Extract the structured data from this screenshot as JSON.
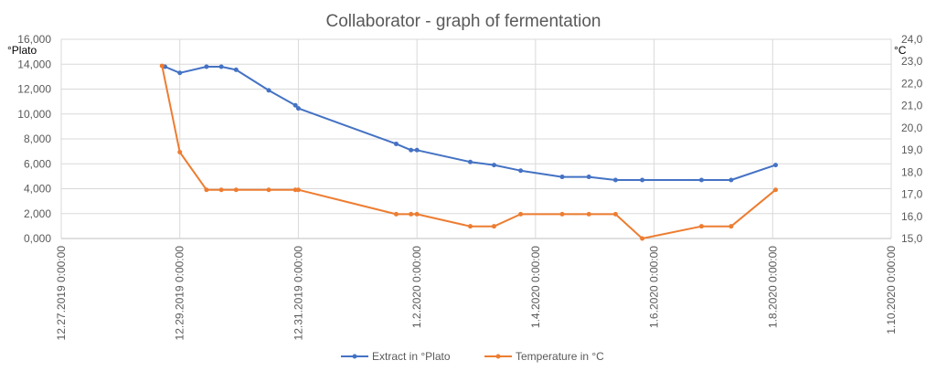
{
  "chart_data": {
    "type": "line",
    "title": "Collaborator - graph of fermentation",
    "xlabel": "",
    "y_left_label": "°Plato",
    "y_right_label": "°C",
    "x_ticks": [
      "12.27.2019 0:00:00",
      "12.29.2019 0:00:00",
      "12.31.2019 0:00:00",
      "1.2.2020 0:00:00",
      "1.4.2020 0:00:00",
      "1.6.2020 0:00:00",
      "1.8.2020 0:00:00",
      "1.10.2020 0:00:00"
    ],
    "x_range_days": [
      0,
      14
    ],
    "y_left_ticks": [
      "0,000",
      "2,000",
      "4,000",
      "6,000",
      "8,000",
      "10,000",
      "12,000",
      "14,000",
      "16,000"
    ],
    "y_left_range": [
      0,
      16
    ],
    "y_right_ticks": [
      "15,0",
      "16,0",
      "17,0",
      "18,0",
      "19,0",
      "20,0",
      "21,0",
      "22,0",
      "23,0",
      "24,0"
    ],
    "y_right_range": [
      15,
      24
    ],
    "grid": true,
    "legend_position": "bottom",
    "series": [
      {
        "name": "Extract in °Plato",
        "axis": "left",
        "color": "#4472c4",
        "x": [
          1.75,
          2.0,
          2.45,
          2.7,
          2.95,
          3.5,
          3.95,
          4.0,
          5.65,
          5.9,
          6.0,
          6.9,
          7.3,
          7.75,
          8.45,
          8.9,
          9.35,
          9.8,
          10.8,
          11.3,
          12.05
        ],
        "y": [
          13.8,
          13.3,
          13.8,
          13.8,
          13.55,
          11.9,
          10.7,
          10.45,
          7.6,
          7.1,
          7.1,
          6.15,
          5.9,
          5.45,
          4.95,
          4.95,
          4.7,
          4.7,
          4.7,
          4.7,
          5.9
        ]
      },
      {
        "name": "Temperature in °C",
        "axis": "right",
        "color": "#ed7d31",
        "x": [
          1.7,
          2.0,
          2.45,
          2.7,
          2.95,
          3.5,
          3.95,
          4.0,
          5.65,
          5.9,
          6.0,
          6.9,
          7.3,
          7.75,
          8.45,
          8.9,
          9.35,
          9.8,
          10.8,
          11.3,
          12.05
        ],
        "y": [
          22.8,
          18.9,
          17.2,
          17.2,
          17.2,
          17.2,
          17.2,
          17.2,
          16.1,
          16.1,
          16.1,
          15.55,
          15.55,
          16.1,
          16.1,
          16.1,
          16.1,
          15.0,
          15.55,
          15.55,
          17.2
        ]
      }
    ]
  }
}
